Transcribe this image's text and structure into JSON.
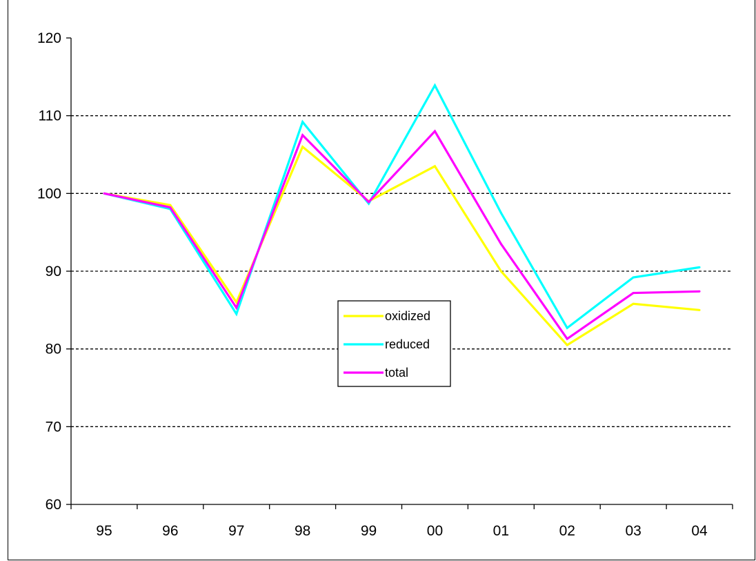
{
  "chart_data": {
    "type": "line",
    "title": "",
    "xlabel": "",
    "ylabel": "",
    "categories": [
      "95",
      "96",
      "97",
      "98",
      "99",
      "00",
      "01",
      "02",
      "03",
      "04"
    ],
    "ylim": [
      60,
      120
    ],
    "yticks": [
      60,
      70,
      80,
      90,
      100,
      110,
      120
    ],
    "grid": "horizontal dashed",
    "legend_position": "center",
    "series": [
      {
        "name": "oxidized",
        "color": "#ffff00",
        "values": [
          100,
          98.5,
          86,
          106,
          99,
          103.5,
          90,
          80.5,
          85.8,
          85
        ]
      },
      {
        "name": "reduced",
        "color": "#00ffff",
        "values": [
          100,
          98,
          84.5,
          109.2,
          98.7,
          113.9,
          97.5,
          82.7,
          89.2,
          90.5
        ]
      },
      {
        "name": "total",
        "color": "#ff00ff",
        "values": [
          100,
          98.2,
          85.3,
          107.5,
          98.9,
          108,
          93.5,
          81.3,
          87.2,
          87.4
        ]
      }
    ]
  }
}
